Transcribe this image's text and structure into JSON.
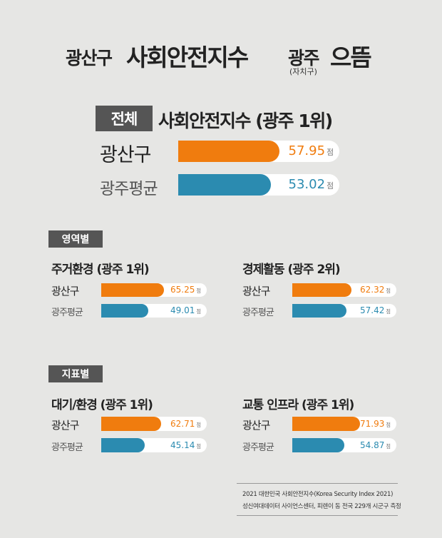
{
  "title": {
    "part1": "광산구",
    "part2": "사회안전지수",
    "part3": "광주",
    "part3_note": "(자치구)",
    "part4": "으뜸"
  },
  "colors": {
    "district": "#f07c0e",
    "average": "#2b8bb0",
    "badge": "#555555",
    "background": "#e6e6e4"
  },
  "overall": {
    "badge": "전체",
    "heading": "사회안전지수 (광주 1위)"
  },
  "sections": {
    "domain_badge": "영역별",
    "indicator_badge": "지표별"
  },
  "chart_data": [
    {
      "type": "bar",
      "title": "사회안전지수 (광주 1위)",
      "categories": [
        "광산구",
        "광주평균"
      ],
      "values": [
        57.95,
        53.02
      ],
      "labels": [
        "57.95",
        "53.02"
      ],
      "unit": "점"
    },
    {
      "type": "bar",
      "title": "주거환경 (광주 1위)",
      "categories": [
        "광산구",
        "광주평균"
      ],
      "values": [
        65.25,
        49.01
      ],
      "labels": [
        "65.25",
        "49.01"
      ],
      "unit": "점"
    },
    {
      "type": "bar",
      "title": "경제활동 (광주 2위)",
      "categories": [
        "광산구",
        "광주평균"
      ],
      "values": [
        62.32,
        57.42
      ],
      "labels": [
        "62.32",
        "57.42"
      ],
      "unit": "점"
    },
    {
      "type": "bar",
      "title": "대기/환경 (광주 1위)",
      "categories": [
        "광산구",
        "광주평균"
      ],
      "values": [
        62.71,
        45.14
      ],
      "labels": [
        "62.71",
        "45.14"
      ],
      "unit": "점"
    },
    {
      "type": "bar",
      "title": "교통 인프라 (광주 1위)",
      "categories": [
        "광산구",
        "광주평균"
      ],
      "values": [
        71.93,
        54.87
      ],
      "labels": [
        "71.93",
        "54.87"
      ],
      "unit": "점"
    }
  ],
  "footer": {
    "line1": "2021 대한민국 사회안전지수(Korea Security Index 2021)",
    "line2": "성신여대데이터 사이언스센터, 피렌이 동 전국 229개 시군구 측정"
  }
}
